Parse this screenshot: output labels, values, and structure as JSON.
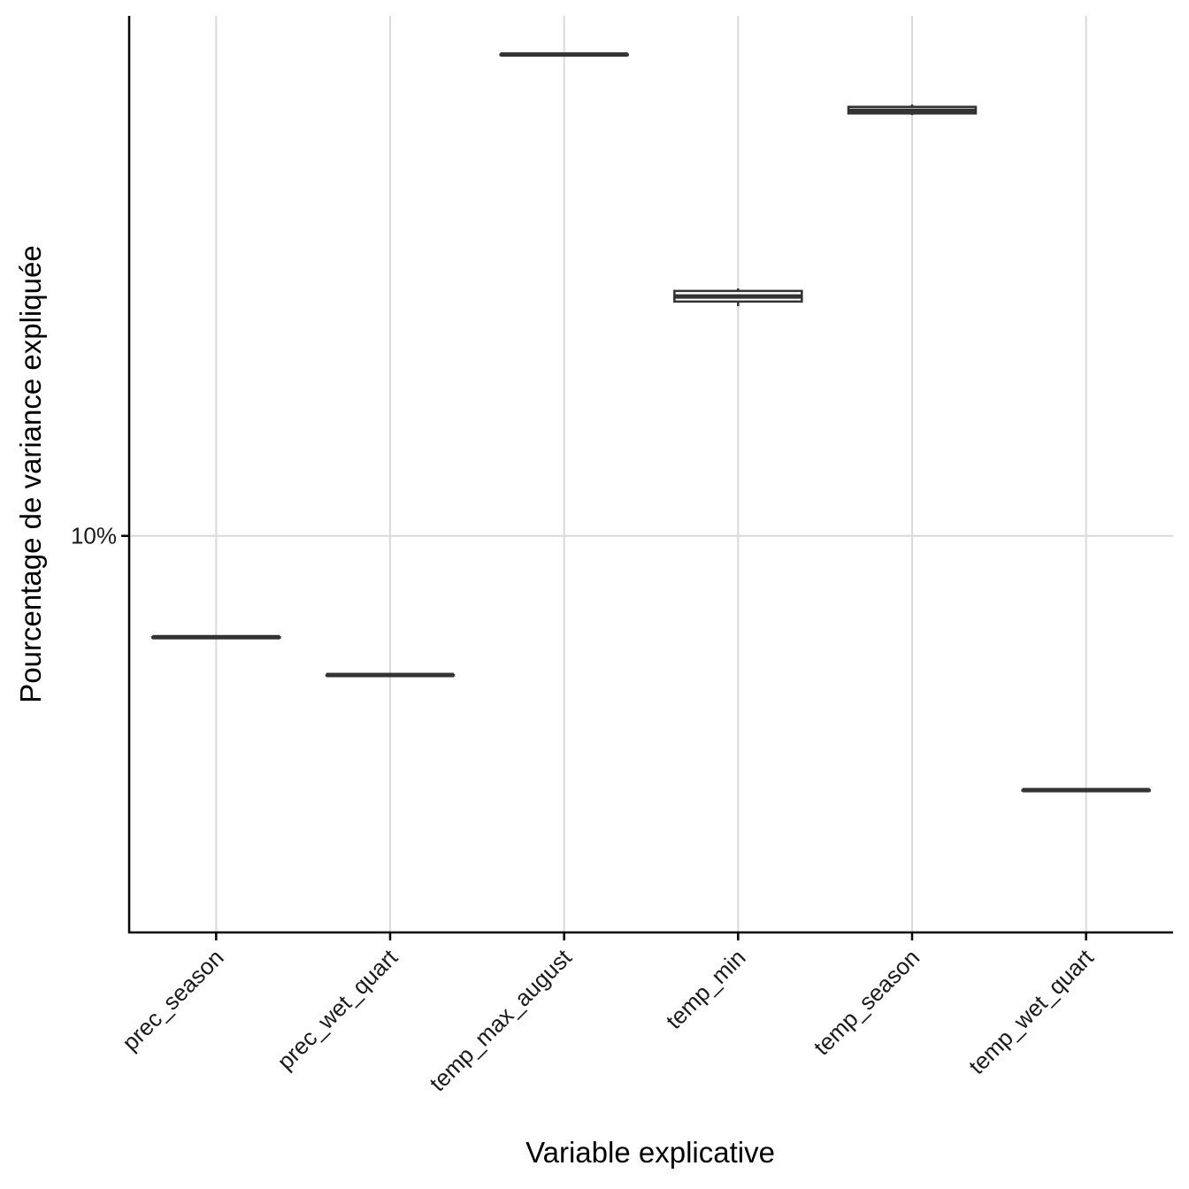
{
  "chart_data": {
    "type": "boxplot",
    "title": "",
    "xlabel": "Variable explicative",
    "ylabel": "Pourcentage de variance expliquée",
    "y_scale": "log10",
    "y_ticks": [
      {
        "value": 10,
        "label": "10%"
      }
    ],
    "ylim": [
      5.72,
      20.8
    ],
    "categories": [
      "prec_season",
      "prec_wet_quart",
      "temp_max_august",
      "temp_min",
      "temp_season",
      "temp_wet_quart"
    ],
    "boxes": [
      {
        "category": "prec_season",
        "min": 8.67,
        "q1": 8.67,
        "median": 8.67,
        "q3": 8.67,
        "max": 8.67
      },
      {
        "category": "prec_wet_quart",
        "min": 8.22,
        "q1": 8.22,
        "median": 8.22,
        "q3": 8.22,
        "max": 8.22
      },
      {
        "category": "temp_max_august",
        "min": 19.7,
        "q1": 19.7,
        "median": 19.7,
        "q3": 19.7,
        "max": 19.7
      },
      {
        "category": "temp_min",
        "min": 13.82,
        "q1": 13.91,
        "median": 14.01,
        "q3": 14.12,
        "max": 14.17
      },
      {
        "category": "temp_season",
        "min": 18.09,
        "q1": 18.13,
        "median": 18.2,
        "q3": 18.3,
        "max": 18.36
      },
      {
        "category": "temp_wet_quart",
        "min": 6.99,
        "q1": 6.99,
        "median": 6.99,
        "q3": 6.99,
        "max": 6.99
      }
    ],
    "grid": true,
    "legend": "none"
  },
  "colors": {
    "box_line": "#333333",
    "box_fill": "#ffffff",
    "grid": "#d9d9d9",
    "axis": "#000000"
  }
}
